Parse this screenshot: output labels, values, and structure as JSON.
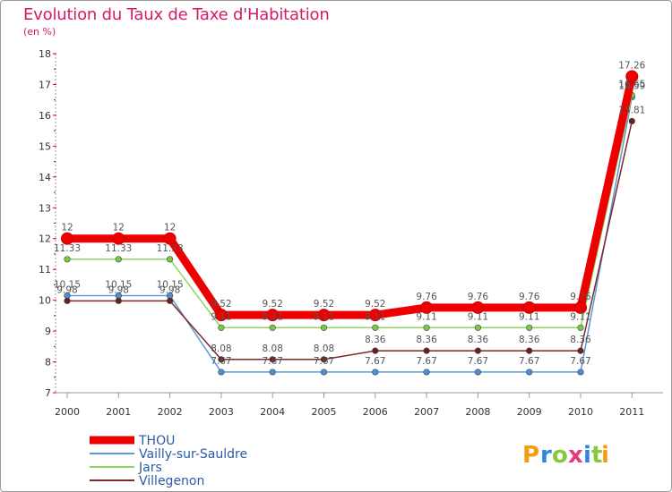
{
  "chart_data": {
    "type": "line",
    "title": "Evolution du Taux de Taxe d'Habitation",
    "ylabel": "(en %)",
    "xlabel": "",
    "categories": [
      "2000",
      "2001",
      "2002",
      "2003",
      "2004",
      "2005",
      "2006",
      "2007",
      "2008",
      "2009",
      "2010",
      "2011"
    ],
    "y_ticks": [
      "7",
      "8",
      "9",
      "10",
      "11",
      "12",
      "13",
      "14",
      "15",
      "16",
      "17",
      "18"
    ],
    "ylim": [
      7,
      18
    ],
    "grid": false,
    "legend_position": "bottom-left",
    "series": [
      {
        "name": "Vailly-sur-Sauldre",
        "color": "#5b9bd5",
        "marker_color": "#4a90d9",
        "values": [
          10.15,
          10.15,
          10.15,
          7.67,
          7.67,
          7.67,
          7.67,
          7.67,
          7.67,
          7.67,
          7.67,
          16.59
        ],
        "labels": [
          "10.15",
          "10.15",
          "10.15",
          "7.67",
          "7.67",
          "7.67",
          "7.67",
          "7.67",
          "7.67",
          "7.67",
          "7.67",
          "16.59"
        ]
      },
      {
        "name": "Jars",
        "color": "#8fd460",
        "marker_color": "#7ac943",
        "values": [
          11.33,
          11.33,
          11.33,
          9.11,
          9.11,
          9.11,
          9.11,
          9.11,
          9.11,
          9.11,
          9.11,
          16.65
        ],
        "labels": [
          "11.33",
          "11.33",
          "11.33",
          "9.11",
          "9.11",
          "9.11",
          "9.11",
          "9.11",
          "9.11",
          "9.11",
          "9.11",
          "16.65"
        ]
      },
      {
        "name": "Villegenon",
        "color": "#7a2a2a",
        "marker_color": "#6b1f1f",
        "values": [
          9.98,
          9.98,
          9.98,
          8.08,
          8.08,
          8.08,
          8.36,
          8.36,
          8.36,
          8.36,
          8.36,
          15.81
        ],
        "labels": [
          "9.98",
          "9.98",
          "9.98",
          "8.08",
          "8.08",
          "8.08",
          "8.36",
          "8.36",
          "8.36",
          "8.36",
          "8.36",
          "15.81"
        ]
      },
      {
        "name": "THOU",
        "color": "#ee0000",
        "marker_color": "#ee0000",
        "values": [
          12,
          12,
          12,
          9.52,
          9.52,
          9.52,
          9.52,
          9.76,
          9.76,
          9.76,
          9.76,
          17.26
        ],
        "labels": [
          "12",
          "12",
          "12",
          "9.52",
          "9.52",
          "9.52",
          "9.52",
          "9.76",
          "9.76",
          "9.76",
          "9.76",
          "17.26"
        ]
      }
    ],
    "legend_order": [
      "THOU",
      "Vailly-sur-Sauldre",
      "Jars",
      "Villegenon"
    ]
  },
  "brand": {
    "letters": [
      "P",
      "r",
      "o",
      "x",
      "i",
      "t",
      "i"
    ],
    "colors": [
      "#f39c12",
      "#2e86de",
      "#8cc63f",
      "#e63b7a",
      "#2e86de",
      "#8cc63f",
      "#f39c12"
    ]
  },
  "colors": {
    "title": "#d61a6a",
    "legend_text": "#2a5aa8",
    "axis": "#999999"
  }
}
